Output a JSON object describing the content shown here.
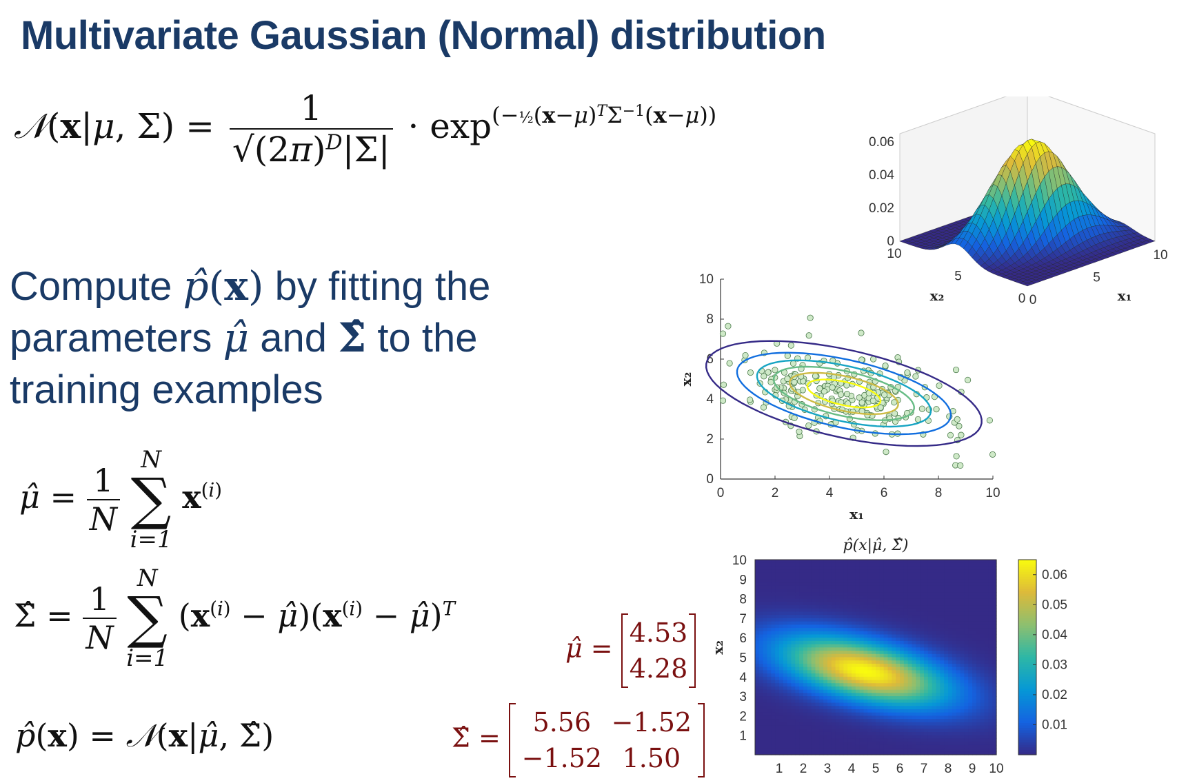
{
  "slide_title": "Multivariate Gaussian (Normal) distribution",
  "description": {
    "line1_pre": "Compute",
    "line1_post": "by fitting the",
    "line2_pre": "parameters",
    "line2_mid": "and",
    "line2_post": "to the",
    "line3": "training examples"
  },
  "estimates": {
    "mu_hat": [
      "4.53",
      "4.28"
    ],
    "sigma_hat": [
      [
        "5.56",
        "−1.52"
      ],
      [
        "−1.52",
        "1.50"
      ]
    ]
  },
  "chart_data": [
    {
      "type": "surface",
      "xlabel": "x₁",
      "ylabel": "x₂",
      "x_ticks": [
        "0",
        "5",
        "10"
      ],
      "y_ticks": [
        "0",
        "5",
        "10"
      ],
      "z_ticks": [
        "0",
        "0.02",
        "0.04",
        "0.06"
      ],
      "xlim": [
        0,
        10
      ],
      "ylim": [
        0,
        10
      ],
      "zlim": [
        0,
        0.065
      ],
      "colormap": "parula"
    },
    {
      "type": "scatter",
      "xlabel": "x₁",
      "ylabel": "x₂",
      "x_ticks": [
        "0",
        "2",
        "4",
        "6",
        "8",
        "10"
      ],
      "y_ticks": [
        "0",
        "2",
        "4",
        "6",
        "8",
        "10"
      ],
      "xlim": [
        0,
        10
      ],
      "ylim": [
        0,
        10
      ],
      "contours": 6,
      "mean": [
        4.53,
        4.28
      ],
      "cov": [
        [
          5.56,
          -1.52
        ],
        [
          -1.52,
          1.5
        ]
      ]
    },
    {
      "type": "heatmap",
      "title": "p̂(x|μ̂, Σ̂)",
      "ylabel": "x₂",
      "x_ticks": [
        "1",
        "2",
        "3",
        "4",
        "5",
        "6",
        "7",
        "8",
        "9",
        "10"
      ],
      "y_ticks": [
        "1",
        "2",
        "3",
        "4",
        "5",
        "6",
        "7",
        "8",
        "9",
        "10"
      ],
      "colorbar_ticks": [
        "0.01",
        "0.02",
        "0.03",
        "0.04",
        "0.05",
        "0.06"
      ],
      "xlim": [
        0,
        10
      ],
      "ylim": [
        0,
        10
      ]
    }
  ]
}
